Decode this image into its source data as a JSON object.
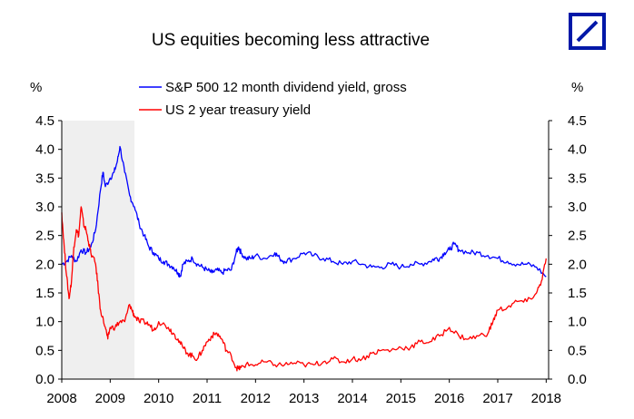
{
  "brand": {
    "logo_color": "#0018a8",
    "logo_name": "deutsche-bank-logo"
  },
  "chart_data": {
    "type": "line",
    "title": "US equities becoming less attractive",
    "ylabel_left": "%",
    "ylabel_right": "%",
    "xlim": [
      2008,
      2018.05
    ],
    "ylim": [
      0,
      4.5
    ],
    "x_ticks": [
      "2008",
      "2009",
      "2010",
      "2011",
      "2012",
      "2013",
      "2014",
      "2015",
      "2016",
      "2017",
      "2018"
    ],
    "y_ticks": [
      "0.0",
      "0.5",
      "1.0",
      "1.5",
      "2.0",
      "2.5",
      "3.0",
      "3.5",
      "4.0",
      "4.5"
    ],
    "grid": false,
    "legend_position": "top",
    "shaded_region": {
      "x_start": 2008,
      "x_end": 2009.5,
      "color": "#efefef"
    },
    "series": [
      {
        "name": "S&P 500 12 month dividend yield, gross",
        "color": "#0000ff",
        "x": [
          2008.0,
          2008.1,
          2008.2,
          2008.3,
          2008.4,
          2008.5,
          2008.6,
          2008.7,
          2008.8,
          2008.85,
          2008.9,
          2009.0,
          2009.08,
          2009.15,
          2009.2,
          2009.3,
          2009.4,
          2009.5,
          2009.6,
          2009.7,
          2009.8,
          2009.9,
          2010.0,
          2010.1,
          2010.2,
          2010.3,
          2010.4,
          2010.45,
          2010.5,
          2010.6,
          2010.7,
          2010.8,
          2010.9,
          2011.0,
          2011.1,
          2011.2,
          2011.3,
          2011.4,
          2011.5,
          2011.6,
          2011.65,
          2011.7,
          2011.8,
          2011.9,
          2012.0,
          2012.2,
          2012.4,
          2012.5,
          2012.6,
          2012.8,
          2013.0,
          2013.2,
          2013.4,
          2013.6,
          2013.8,
          2014.0,
          2014.2,
          2014.4,
          2014.6,
          2014.8,
          2015.0,
          2015.2,
          2015.4,
          2015.6,
          2015.7,
          2015.8,
          2015.9,
          2016.0,
          2016.1,
          2016.2,
          2016.4,
          2016.6,
          2016.8,
          2017.0,
          2017.2,
          2017.4,
          2017.6,
          2017.8,
          2018.0
        ],
        "values": [
          2.0,
          2.05,
          2.15,
          2.05,
          2.25,
          2.2,
          2.3,
          2.6,
          3.3,
          3.6,
          3.35,
          3.5,
          3.6,
          3.8,
          4.05,
          3.6,
          3.2,
          3.0,
          2.7,
          2.5,
          2.3,
          2.2,
          2.1,
          2.05,
          2.0,
          1.95,
          1.85,
          1.8,
          2.0,
          2.05,
          2.1,
          2.0,
          1.95,
          1.9,
          1.85,
          1.9,
          1.85,
          1.9,
          1.9,
          2.2,
          2.3,
          2.2,
          2.1,
          2.1,
          2.15,
          2.1,
          2.2,
          2.1,
          2.05,
          2.1,
          2.2,
          2.15,
          2.1,
          2.05,
          2.0,
          2.05,
          2.0,
          1.95,
          1.95,
          2.0,
          1.95,
          2.0,
          2.0,
          2.05,
          2.1,
          2.1,
          2.2,
          2.25,
          2.35,
          2.25,
          2.2,
          2.2,
          2.15,
          2.1,
          2.05,
          2.0,
          2.0,
          1.95,
          1.78
        ]
      },
      {
        "name": "US 2 year treasury yield",
        "color": "#ff0000",
        "x": [
          2008.0,
          2008.05,
          2008.1,
          2008.15,
          2008.2,
          2008.25,
          2008.3,
          2008.35,
          2008.4,
          2008.45,
          2008.5,
          2008.55,
          2008.6,
          2008.7,
          2008.75,
          2008.8,
          2008.9,
          2008.95,
          2009.0,
          2009.1,
          2009.2,
          2009.3,
          2009.4,
          2009.45,
          2009.5,
          2009.6,
          2009.7,
          2009.8,
          2009.9,
          2010.0,
          2010.2,
          2010.3,
          2010.4,
          2010.5,
          2010.6,
          2010.7,
          2010.8,
          2010.9,
          2011.0,
          2011.1,
          2011.2,
          2011.3,
          2011.4,
          2011.5,
          2011.6,
          2011.65,
          2011.7,
          2011.8,
          2012.0,
          2012.2,
          2012.4,
          2012.6,
          2012.8,
          2013.0,
          2013.2,
          2013.4,
          2013.6,
          2013.8,
          2014.0,
          2014.2,
          2014.4,
          2014.6,
          2014.8,
          2015.0,
          2015.2,
          2015.4,
          2015.6,
          2015.8,
          2016.0,
          2016.2,
          2016.4,
          2016.6,
          2016.8,
          2016.9,
          2017.0,
          2017.2,
          2017.4,
          2017.6,
          2017.8,
          2017.9,
          2018.0
        ],
        "values": [
          2.9,
          2.3,
          1.8,
          1.4,
          1.7,
          2.3,
          2.6,
          2.5,
          3.0,
          2.7,
          2.6,
          2.4,
          2.2,
          2.0,
          1.6,
          1.2,
          0.9,
          0.7,
          0.9,
          0.9,
          1.0,
          1.0,
          1.3,
          1.2,
          1.1,
          1.0,
          1.0,
          0.95,
          0.85,
          1.0,
          0.9,
          0.8,
          0.7,
          0.55,
          0.45,
          0.4,
          0.35,
          0.5,
          0.65,
          0.75,
          0.8,
          0.7,
          0.5,
          0.4,
          0.2,
          0.18,
          0.2,
          0.25,
          0.25,
          0.3,
          0.25,
          0.25,
          0.28,
          0.25,
          0.25,
          0.3,
          0.35,
          0.3,
          0.35,
          0.35,
          0.45,
          0.5,
          0.5,
          0.55,
          0.55,
          0.65,
          0.65,
          0.75,
          0.9,
          0.75,
          0.7,
          0.75,
          0.8,
          1.0,
          1.2,
          1.25,
          1.35,
          1.35,
          1.5,
          1.7,
          2.1
        ]
      }
    ]
  }
}
